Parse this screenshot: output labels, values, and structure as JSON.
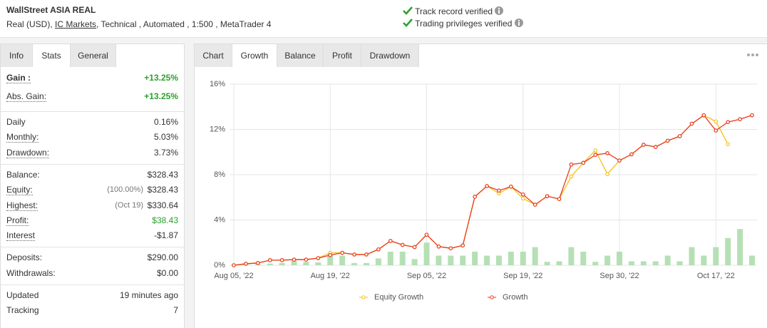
{
  "header": {
    "title": "WallStreet ASIA REAL",
    "subtitle": [
      "Real (USD),",
      "IC Markets",
      ", Technical , Automated , 1:500 , MetaTrader 4"
    ],
    "badges": [
      "Track record verified",
      "Trading privileges verified"
    ]
  },
  "left_tabs": {
    "items": [
      "Info",
      "Stats",
      "General"
    ],
    "active": 1
  },
  "stats": [
    {
      "rows": [
        {
          "label": "Gain :",
          "value": "+13.25%",
          "color": "#2ca02c"
        },
        {
          "label": "Abs. Gain:",
          "value": "+13.25%",
          "color": "#2ca02c"
        }
      ]
    },
    {
      "rows": [
        {
          "label": "Daily",
          "value": "0.16%"
        },
        {
          "label": "Monthly:",
          "value": "5.03%"
        },
        {
          "label": "Drawdown:",
          "value": "3.73%"
        }
      ]
    },
    {
      "rows": [
        {
          "label": "Balance:",
          "value": "$328.43"
        },
        {
          "label": "Equity:",
          "note": "(100.00%)",
          "value": "$328.43"
        },
        {
          "label": "Highest:",
          "note": "(Oct 19)",
          "value": "$330.64"
        },
        {
          "label": "Profit:",
          "value": "$38.43",
          "color": "#2ca02c"
        },
        {
          "label": "Interest",
          "value": "-$1.87"
        }
      ]
    },
    {
      "rows": [
        {
          "label": "Deposits:",
          "value": "$290.00"
        },
        {
          "label": "Withdrawals:",
          "value": "$0.00"
        }
      ]
    },
    {
      "rows": [
        {
          "label": "Updated",
          "value": "19 minutes ago"
        },
        {
          "label": "Tracking",
          "value": "7"
        }
      ]
    }
  ],
  "chart_tabs": {
    "items": [
      "Chart",
      "Growth",
      "Balance",
      "Profit",
      "Drawdown"
    ],
    "active": 1
  },
  "chart_data": {
    "type": "line",
    "categories": [
      "Aug 05, '22",
      null,
      null,
      null,
      null,
      null,
      null,
      null,
      "Aug 19, '22",
      null,
      null,
      null,
      null,
      null,
      null,
      null,
      "Sep 05, '22",
      null,
      null,
      null,
      null,
      null,
      null,
      null,
      "Sep 19, '22",
      null,
      null,
      null,
      null,
      null,
      null,
      null,
      "Sep 30, '22",
      null,
      null,
      null,
      null,
      null,
      null,
      null,
      "Oct 17, '22",
      null,
      null,
      null
    ],
    "series": [
      {
        "name": "Equity Growth",
        "color": "#f2c21b",
        "values": [
          0,
          0.13,
          0.2,
          0.45,
          0.45,
          0.5,
          0.5,
          0.63,
          1.1,
          1.1,
          0.95,
          0.95,
          1.4,
          2.15,
          1.8,
          1.6,
          2.7,
          1.65,
          1.5,
          1.75,
          6.05,
          7.0,
          6.35,
          6.95,
          5.9,
          5.35,
          6.1,
          5.85,
          7.85,
          9.05,
          10.15,
          8.05,
          9.25,
          9.8,
          10.65,
          10.45,
          11.0,
          11.4,
          12.5,
          13.25,
          12.7,
          10.7,
          null,
          13.25
        ]
      },
      {
        "name": "Growth",
        "color": "#e8391d",
        "values": [
          0,
          0.13,
          0.2,
          0.45,
          0.45,
          0.5,
          0.5,
          0.63,
          0.9,
          1.1,
          0.95,
          0.95,
          1.4,
          2.15,
          1.8,
          1.6,
          2.7,
          1.65,
          1.5,
          1.75,
          6.05,
          7.0,
          6.6,
          6.95,
          6.25,
          5.35,
          6.1,
          5.85,
          8.9,
          9.05,
          9.75,
          9.9,
          9.25,
          9.8,
          10.65,
          10.45,
          11.0,
          11.4,
          12.5,
          13.25,
          11.9,
          12.65,
          12.9,
          13.25
        ]
      },
      {
        "type": "bar",
        "color": "#b5e0b5",
        "values": [
          0,
          0.05,
          0.1,
          0.15,
          0.2,
          0.4,
          0.3,
          0.25,
          0.9,
          0.85,
          0.2,
          0.2,
          0.6,
          1.2,
          1.2,
          0.55,
          2.0,
          0.85,
          0.85,
          0.85,
          1.2,
          0.85,
          0.85,
          1.2,
          1.2,
          1.6,
          0.3,
          0.35,
          1.6,
          1.2,
          0.3,
          0.85,
          1.2,
          0.35,
          0.35,
          0.35,
          0.85,
          0.35,
          1.6,
          0.85,
          1.6,
          2.4,
          3.2,
          0.85
        ]
      }
    ],
    "ylim": [
      0,
      16
    ],
    "yticks": [
      {
        "value": 0,
        "label": "0%"
      },
      {
        "value": 4,
        "label": "4%"
      },
      {
        "value": 8,
        "label": "8%"
      },
      {
        "value": 12,
        "label": "12%"
      },
      {
        "value": 16,
        "label": "16%"
      }
    ],
    "grid": true
  }
}
